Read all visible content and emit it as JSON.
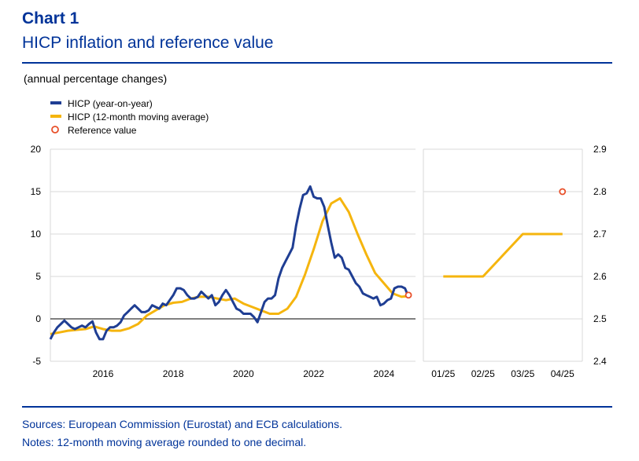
{
  "header": {
    "chart_number": "Chart 1",
    "title": "HICP inflation and reference value",
    "subtitle": "(annual percentage changes)"
  },
  "footer": {
    "sources": "Sources: European Commission (Eurostat) and ECB calculations.",
    "notes": "Notes: 12-month moving average rounded to one decimal."
  },
  "colors": {
    "hicp": "#1f3e93",
    "moving_average": "#f5b50e",
    "reference": "#e8502a",
    "rule": "#003399"
  },
  "chart_data": [
    {
      "type": "line",
      "legend": [
        {
          "name": "HICP (year-on-year)",
          "marker": "line"
        },
        {
          "name": "HICP (12-month moving average)",
          "marker": "line"
        },
        {
          "name": "Reference value",
          "marker": "circle"
        }
      ],
      "ylim": [
        -5,
        20
      ],
      "yticks": [
        "20",
        "15",
        "10",
        "5",
        "0",
        "-5"
      ],
      "ytick_values": [
        20,
        15,
        10,
        5,
        0,
        -5
      ],
      "xlim": [
        2014.5,
        2024.9
      ],
      "xticks": [
        "2016",
        "2018",
        "2020",
        "2022",
        "2024"
      ],
      "xtick_values": [
        2016,
        2018,
        2020,
        2022,
        2024
      ],
      "grid": true,
      "series": [
        {
          "name": "HICP (year-on-year)",
          "x": [
            2014.5,
            2014.6,
            2014.7,
            2014.8,
            2014.9,
            2015.0,
            2015.1,
            2015.2,
            2015.3,
            2015.4,
            2015.5,
            2015.6,
            2015.7,
            2015.8,
            2015.9,
            2016.0,
            2016.1,
            2016.2,
            2016.3,
            2016.4,
            2016.5,
            2016.6,
            2016.7,
            2016.8,
            2016.9,
            2017.0,
            2017.1,
            2017.2,
            2017.3,
            2017.4,
            2017.5,
            2017.6,
            2017.7,
            2017.8,
            2017.9,
            2018.0,
            2018.1,
            2018.2,
            2018.3,
            2018.4,
            2018.5,
            2018.6,
            2018.7,
            2018.8,
            2018.9,
            2019.0,
            2019.1,
            2019.2,
            2019.3,
            2019.4,
            2019.5,
            2019.6,
            2019.7,
            2019.8,
            2019.9,
            2020.0,
            2020.1,
            2020.2,
            2020.3,
            2020.4,
            2020.5,
            2020.6,
            2020.7,
            2020.8,
            2020.9,
            2021.0,
            2021.1,
            2021.2,
            2021.3,
            2021.4,
            2021.5,
            2021.6,
            2021.7,
            2021.8,
            2021.9,
            2022.0,
            2022.1,
            2022.2,
            2022.3,
            2022.4,
            2022.5,
            2022.6,
            2022.7,
            2022.8,
            2022.9,
            2023.0,
            2023.1,
            2023.2,
            2023.3,
            2023.4,
            2023.5,
            2023.6,
            2023.7,
            2023.8,
            2023.9,
            2024.0,
            2024.1,
            2024.2,
            2024.3,
            2024.4,
            2024.5,
            2024.6,
            2024.7
          ],
          "values": [
            -2.4,
            -1.6,
            -1.0,
            -0.6,
            -0.2,
            -0.6,
            -1.0,
            -1.2,
            -1.0,
            -0.8,
            -1.0,
            -0.6,
            -0.3,
            -1.6,
            -2.4,
            -2.4,
            -1.4,
            -1.0,
            -1.0,
            -0.8,
            -0.4,
            0.4,
            0.8,
            1.2,
            1.6,
            1.2,
            0.8,
            0.8,
            1.0,
            1.6,
            1.4,
            1.2,
            1.8,
            1.6,
            2.2,
            2.8,
            3.6,
            3.6,
            3.4,
            2.8,
            2.4,
            2.4,
            2.6,
            3.2,
            2.8,
            2.4,
            2.8,
            1.6,
            2.0,
            2.8,
            3.4,
            2.8,
            2.0,
            1.2,
            1.0,
            0.6,
            0.6,
            0.6,
            0.2,
            -0.4,
            0.8,
            2.0,
            2.4,
            2.4,
            2.8,
            4.8,
            6.0,
            6.8,
            7.6,
            8.4,
            11.0,
            13.0,
            14.6,
            14.8,
            15.6,
            14.4,
            14.2,
            14.2,
            13.2,
            11.0,
            9.0,
            7.2,
            7.6,
            7.2,
            6.0,
            5.8,
            5.0,
            4.2,
            3.8,
            3.0,
            2.8,
            2.6,
            2.4,
            2.6,
            1.6,
            1.8,
            2.2,
            2.4,
            3.6,
            3.8,
            3.8,
            3.6,
            2.6
          ]
        },
        {
          "name": "HICP (12-month moving average)",
          "x": [
            2014.5,
            2014.75,
            2015.0,
            2015.25,
            2015.5,
            2015.75,
            2016.0,
            2016.25,
            2016.5,
            2016.75,
            2017.0,
            2017.25,
            2017.5,
            2017.75,
            2018.0,
            2018.25,
            2018.5,
            2018.75,
            2019.0,
            2019.25,
            2019.5,
            2019.75,
            2020.0,
            2020.25,
            2020.5,
            2020.75,
            2021.0,
            2021.25,
            2021.5,
            2021.75,
            2022.0,
            2022.25,
            2022.5,
            2022.75,
            2023.0,
            2023.25,
            2023.5,
            2023.75,
            2024.0,
            2024.25,
            2024.5,
            2024.75
          ],
          "values": [
            -1.8,
            -1.6,
            -1.4,
            -1.3,
            -1.2,
            -0.9,
            -1.2,
            -1.4,
            -1.4,
            -1.1,
            -0.6,
            0.4,
            1.0,
            1.6,
            1.9,
            2.0,
            2.4,
            2.6,
            2.6,
            2.4,
            2.2,
            2.4,
            1.8,
            1.4,
            1.0,
            0.6,
            0.6,
            1.2,
            2.6,
            5.2,
            8.2,
            11.5,
            13.6,
            14.2,
            12.6,
            10.0,
            7.6,
            5.4,
            4.2,
            3.0,
            2.6,
            2.7
          ]
        }
      ],
      "reference_point": {
        "x": 2024.7,
        "value": 2.8
      }
    },
    {
      "type": "line",
      "ylim": [
        2.4,
        2.9
      ],
      "yticks": [
        "2.9",
        "2.8",
        "2.7",
        "2.6",
        "2.5",
        "2.4"
      ],
      "ytick_values": [
        2.9,
        2.8,
        2.7,
        2.6,
        2.5,
        2.4
      ],
      "categories": [
        "01/25",
        "02/25",
        "03/25",
        "04/25"
      ],
      "grid": true,
      "series": [
        {
          "name": "HICP (12-month moving average)",
          "values": [
            2.6,
            2.6,
            2.7,
            2.7
          ]
        }
      ],
      "reference_point": {
        "category": "04/25",
        "value": 2.8
      }
    }
  ]
}
